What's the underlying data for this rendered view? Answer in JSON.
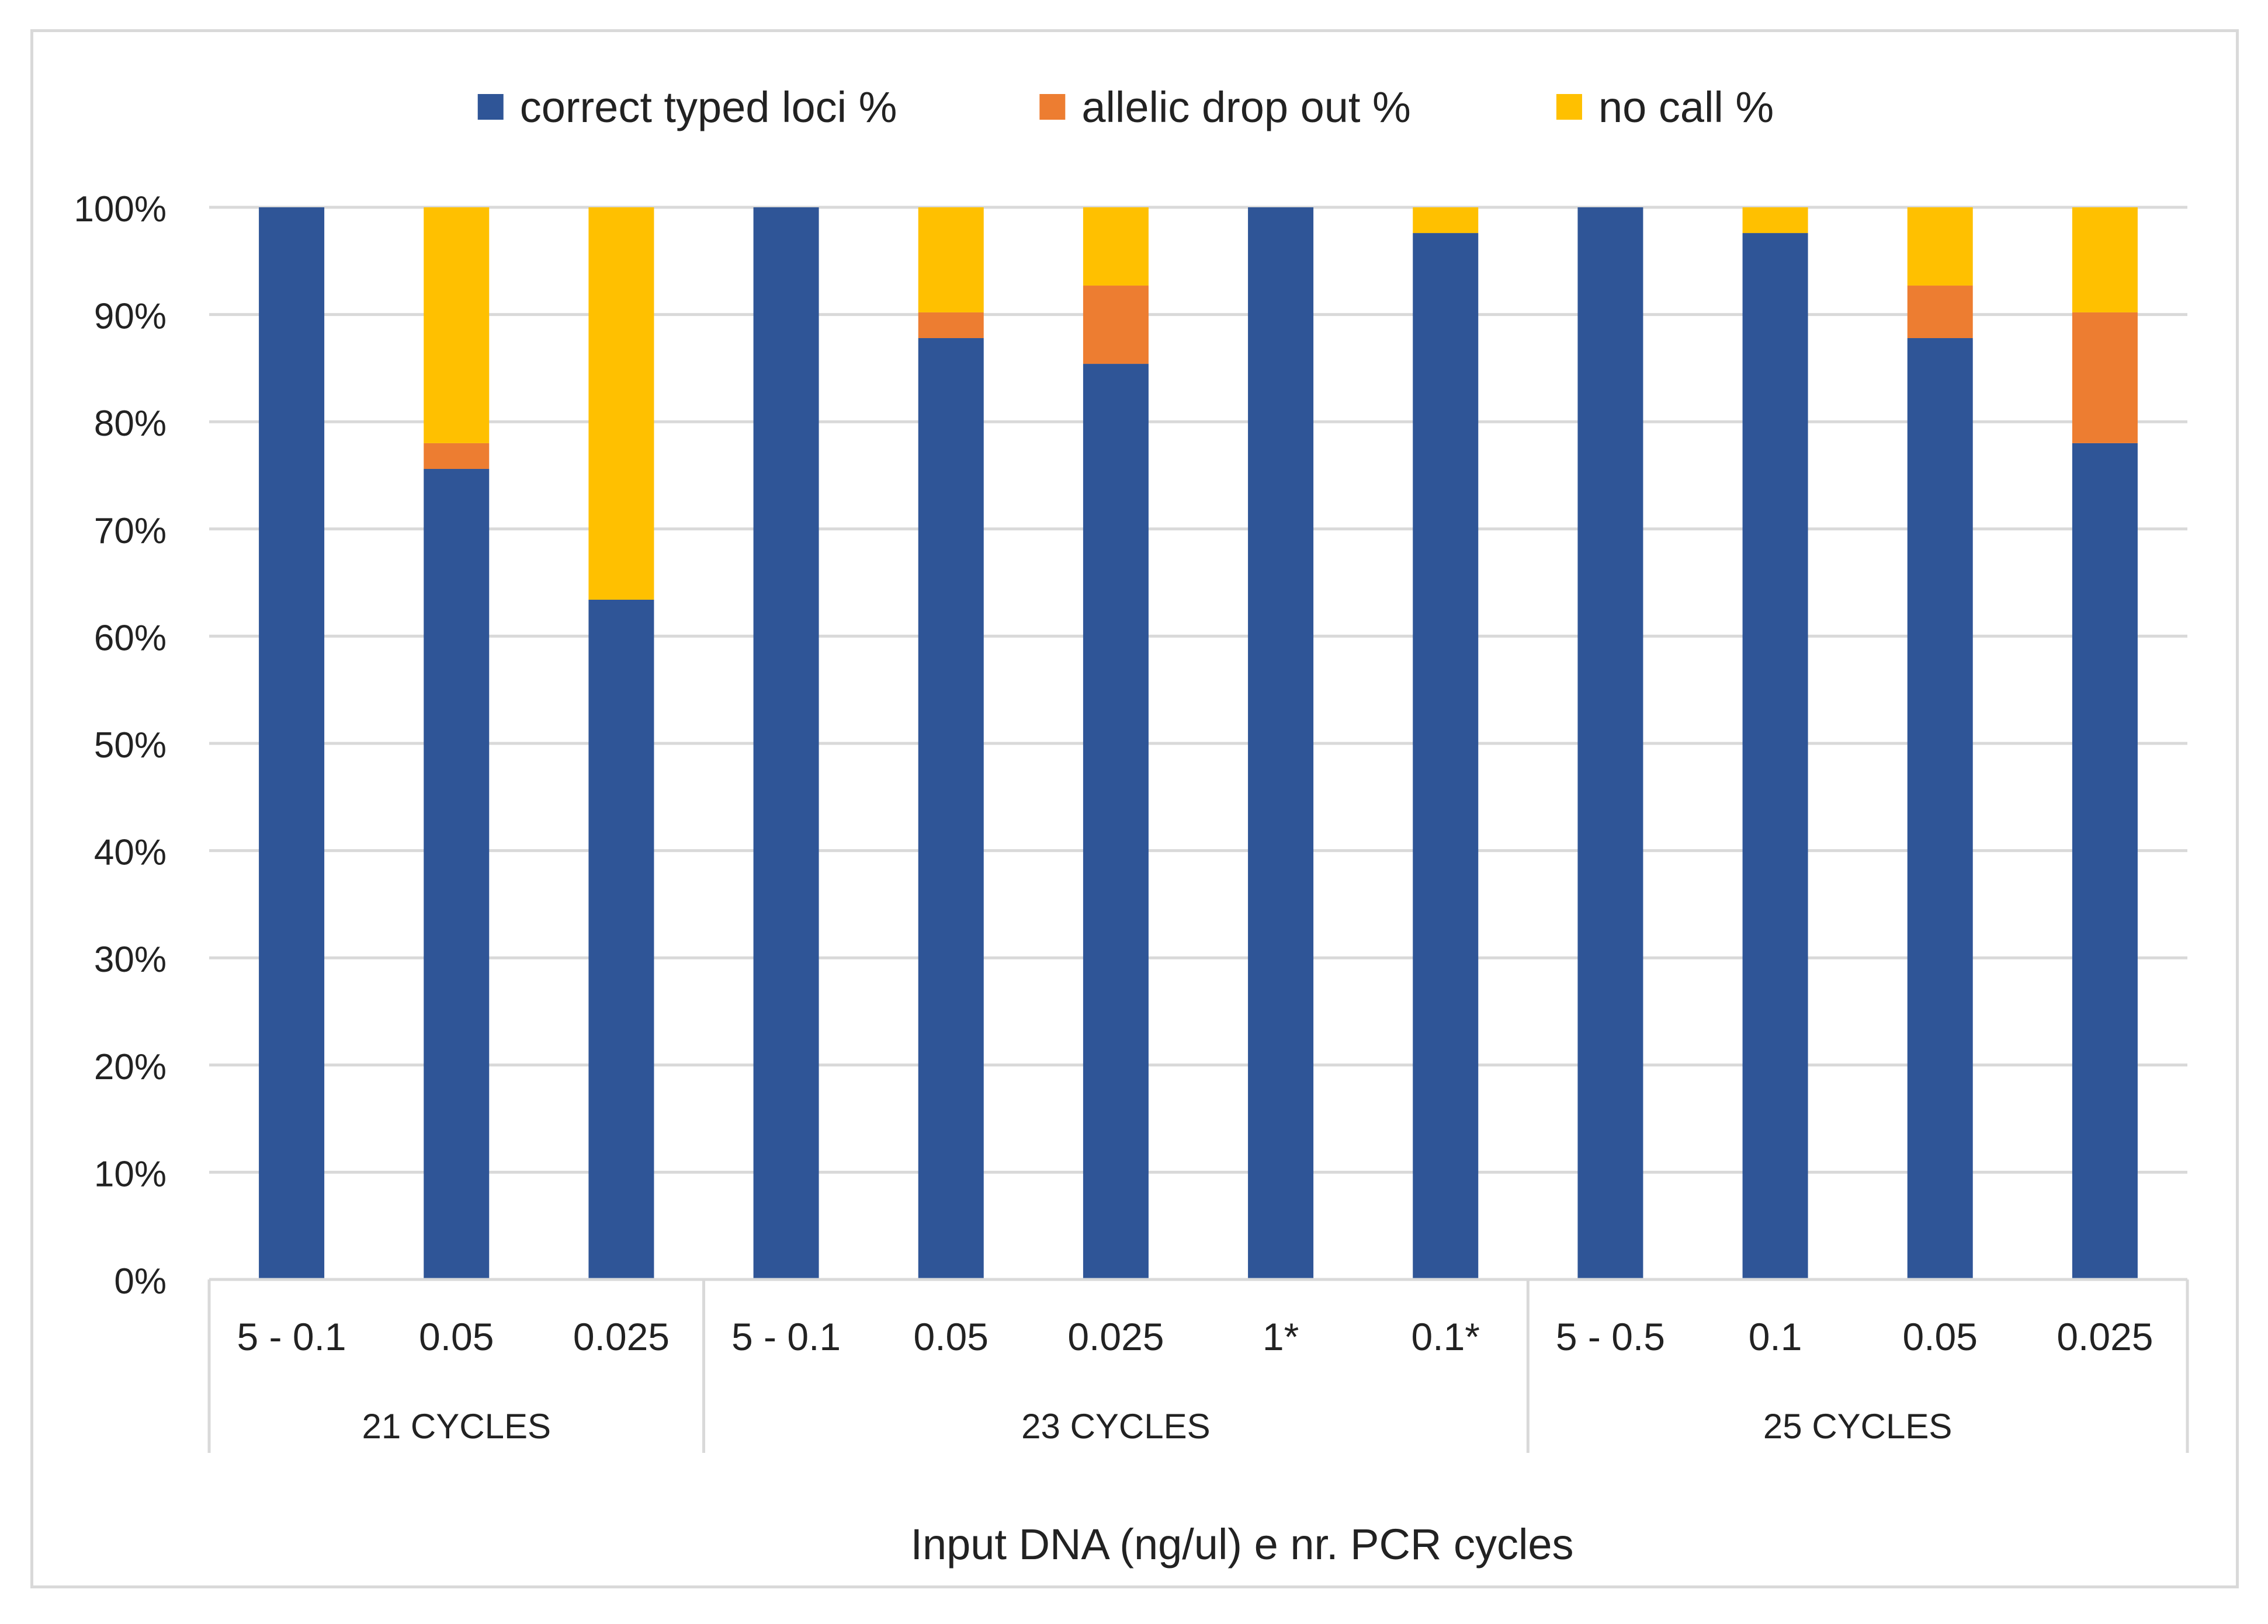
{
  "chart_data": {
    "type": "bar",
    "stacked": true,
    "xlabel": "Input DNA (ng/ul) e nr. PCR cycles",
    "ylabel": "",
    "ylim": [
      0,
      100
    ],
    "y_ticks": [
      "0%",
      "10%",
      "20%",
      "30%",
      "40%",
      "50%",
      "60%",
      "70%",
      "80%",
      "90%",
      "100%"
    ],
    "legend_position": "top-center",
    "groups": [
      {
        "label": "21 CYCLES",
        "categories": [
          "5 - 0.1",
          "0.05",
          "0.025"
        ]
      },
      {
        "label": "23 CYCLES",
        "categories": [
          "5 - 0.1",
          "0.05",
          "0.025",
          "1*",
          "0.1*"
        ]
      },
      {
        "label": "25 CYCLES",
        "categories": [
          "5 - 0.5",
          "0.1",
          "0.05",
          "0.025"
        ]
      }
    ],
    "categories": [
      "5 - 0.1",
      "0.05",
      "0.025",
      "5 - 0.1",
      "0.05",
      "0.025",
      "1*",
      "0.1*",
      "5 - 0.5",
      "0.1",
      "0.05",
      "0.025"
    ],
    "series": [
      {
        "name": "correct typed loci %",
        "color": "#2f5597",
        "values": [
          100,
          75.6,
          63.4,
          100,
          87.8,
          85.4,
          100,
          97.6,
          100,
          97.6,
          87.8,
          78.0
        ]
      },
      {
        "name": "allelic drop out %",
        "color": "#ed7d31",
        "values": [
          0,
          2.4,
          0,
          0,
          2.4,
          7.3,
          0,
          0,
          0,
          0,
          4.9,
          12.2
        ]
      },
      {
        "name": "no call %",
        "color": "#ffc000",
        "values": [
          0,
          22.0,
          36.6,
          0,
          9.8,
          7.3,
          0,
          2.4,
          0,
          2.4,
          7.3,
          9.8
        ]
      }
    ]
  }
}
